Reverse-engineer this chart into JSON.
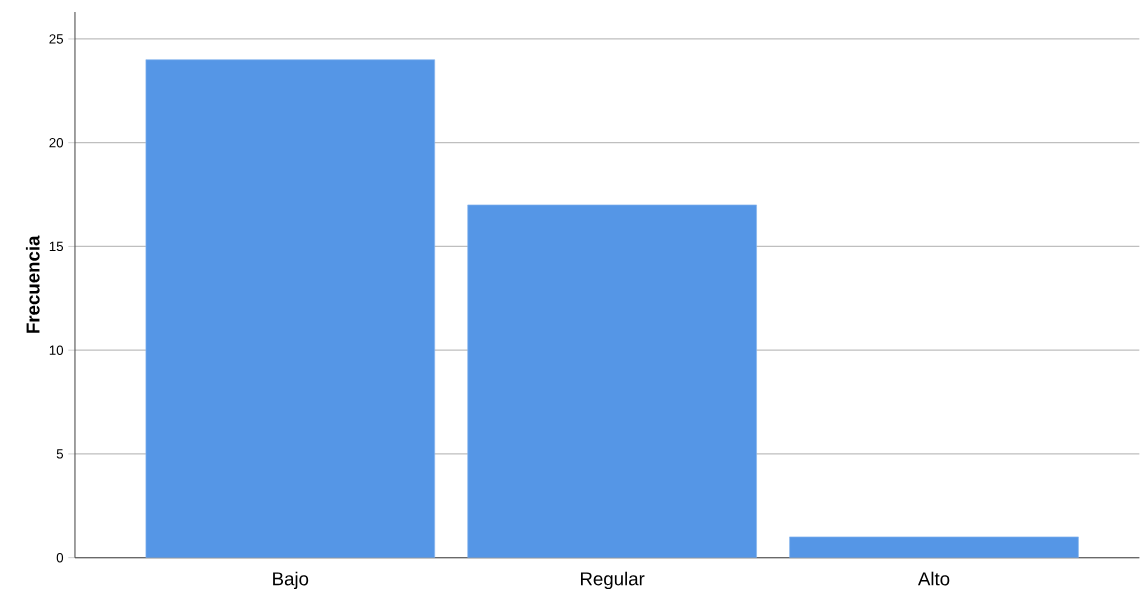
{
  "chart_data": {
    "type": "bar",
    "ylabel": "Frecuencia",
    "categories": [
      "Bajo",
      "Regular",
      "Alto"
    ],
    "values": [
      24,
      17,
      1
    ],
    "color": "#5596e6",
    "ylim": [
      0,
      26.3
    ],
    "yticks": [
      0,
      5,
      10,
      15,
      20,
      25
    ],
    "grid": "y"
  }
}
